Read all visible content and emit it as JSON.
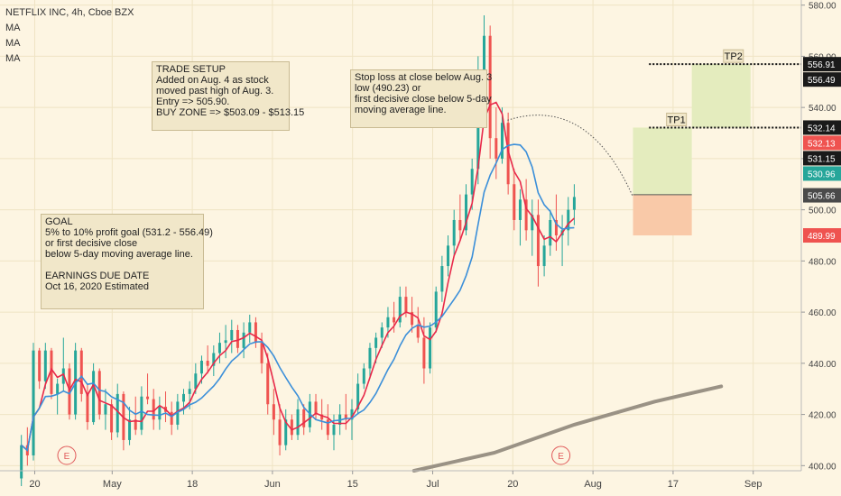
{
  "header": {
    "symbol_line": "NETFLIX INC, 4h, Cboe BZX",
    "indicators": [
      "MA",
      "MA",
      "MA"
    ]
  },
  "notes": {
    "trade_setup": "TRADE SETUP\nAdded on Aug. 4 as stock\nmoved past high of Aug. 3.\nEntry => 505.90.\nBUY ZONE => $503.09 - $513.15",
    "stop_loss": "Stop loss at close below Aug. 3\nlow (490.23) or\nfirst decisive close below 5-day\nmoving average line.",
    "goal": "GOAL\n5% to 10% profit goal (531.2 - 556.49)\nor first decisive close\nbelow 5-day moving average line.\n\nEARNINGS DUE DATE\nOct 16, 2020 Estimated"
  },
  "targets": {
    "tp1": "TP1",
    "tp2": "TP2"
  },
  "earnings_marker": "E",
  "price_labels": [
    "556.91",
    "556.49",
    "532.14",
    "532.13",
    "531.15",
    "530.96",
    "505.66",
    "489.99"
  ],
  "colors": {
    "background": "#fdf5e2",
    "up": "#26a69a",
    "down": "#ef5350",
    "ma_fast": "#e8294a",
    "ma_mid": "#3b8fd9",
    "ma_slow": "#9a9285",
    "profit_zone": "#e4ecbe",
    "loss_zone": "#f9c9a8"
  },
  "chart_data": {
    "type": "candlestick",
    "title": "NETFLIX INC, 4h, Cboe BZX",
    "ylim": [
      398,
      582
    ],
    "y_ticks": [
      400,
      420,
      440,
      460,
      480,
      500,
      520,
      540,
      560,
      580
    ],
    "x_ticks": [
      "20",
      "May",
      "18",
      "Jun",
      "15",
      "Jul",
      "20",
      "Aug",
      "17",
      "Sep"
    ],
    "x_tick_index": [
      8,
      37,
      67,
      97,
      127,
      157,
      187,
      217,
      247,
      277
    ],
    "x_range": [
      -5,
      295
    ],
    "candles_approx": [
      [
        395,
        412,
        392,
        408
      ],
      [
        408,
        415,
        400,
        404
      ],
      [
        404,
        448,
        402,
        445
      ],
      [
        445,
        446,
        430,
        433
      ],
      [
        433,
        448,
        430,
        445
      ],
      [
        445,
        446,
        426,
        428
      ],
      [
        428,
        434,
        420,
        432
      ],
      [
        432,
        450,
        429,
        438
      ],
      [
        438,
        440,
        418,
        420
      ],
      [
        420,
        448,
        418,
        445
      ],
      [
        445,
        446,
        425,
        428
      ],
      [
        428,
        432,
        414,
        417
      ],
      [
        417,
        440,
        416,
        437
      ],
      [
        437,
        438,
        418,
        420
      ],
      [
        420,
        430,
        414,
        424
      ],
      [
        424,
        426,
        410,
        413
      ],
      [
        413,
        432,
        411,
        428
      ],
      [
        428,
        429,
        406,
        410
      ],
      [
        410,
        423,
        408,
        418
      ],
      [
        418,
        427,
        412,
        414
      ],
      [
        414,
        431,
        412,
        427
      ],
      [
        427,
        436,
        424,
        426
      ],
      [
        426,
        430,
        414,
        418
      ],
      [
        418,
        427,
        414,
        423
      ],
      [
        423,
        429,
        417,
        421
      ],
      [
        421,
        425,
        412,
        416
      ],
      [
        416,
        428,
        414,
        425
      ],
      [
        425,
        430,
        420,
        428
      ],
      [
        428,
        433,
        422,
        430
      ],
      [
        430,
        440,
        428,
        436
      ],
      [
        436,
        443,
        432,
        441
      ],
      [
        441,
        447,
        436,
        439
      ],
      [
        439,
        447,
        435,
        444
      ],
      [
        444,
        452,
        440,
        448
      ],
      [
        448,
        455,
        442,
        449
      ],
      [
        449,
        457,
        444,
        453
      ],
      [
        453,
        455,
        444,
        446
      ],
      [
        446,
        456,
        442,
        452
      ],
      [
        452,
        459,
        448,
        456
      ],
      [
        456,
        458,
        446,
        448
      ],
      [
        448,
        452,
        436,
        440
      ],
      [
        440,
        444,
        420,
        424
      ],
      [
        424,
        430,
        412,
        418
      ],
      [
        418,
        424,
        404,
        408
      ],
      [
        408,
        422,
        406,
        418
      ],
      [
        418,
        420,
        410,
        412
      ],
      [
        412,
        426,
        410,
        422
      ],
      [
        422,
        424,
        412,
        415
      ],
      [
        415,
        428,
        413,
        425
      ],
      [
        425,
        428,
        418,
        420
      ],
      [
        420,
        426,
        414,
        418
      ],
      [
        418,
        424,
        410,
        412
      ],
      [
        412,
        420,
        406,
        416
      ],
      [
        416,
        424,
        412,
        420
      ],
      [
        420,
        428,
        414,
        418
      ],
      [
        418,
        426,
        410,
        422
      ],
      [
        422,
        436,
        420,
        432
      ],
      [
        432,
        440,
        430,
        438
      ],
      [
        438,
        448,
        434,
        446
      ],
      [
        446,
        452,
        440,
        450
      ],
      [
        450,
        456,
        446,
        454
      ],
      [
        454,
        462,
        450,
        458
      ],
      [
        458,
        464,
        452,
        456
      ],
      [
        456,
        470,
        454,
        466
      ],
      [
        466,
        470,
        458,
        460
      ],
      [
        460,
        466,
        452,
        455
      ],
      [
        455,
        462,
        448,
        450
      ],
      [
        450,
        458,
        432,
        438
      ],
      [
        438,
        456,
        436,
        454
      ],
      [
        454,
        470,
        452,
        468
      ],
      [
        468,
        482,
        464,
        478
      ],
      [
        478,
        490,
        474,
        486
      ],
      [
        486,
        500,
        482,
        496
      ],
      [
        496,
        506,
        488,
        492
      ],
      [
        492,
        510,
        490,
        506
      ],
      [
        506,
        520,
        500,
        516
      ],
      [
        516,
        560,
        510,
        552
      ],
      [
        552,
        576,
        540,
        568
      ],
      [
        568,
        572,
        520,
        528
      ],
      [
        528,
        540,
        512,
        520
      ],
      [
        520,
        540,
        518,
        534
      ],
      [
        534,
        538,
        506,
        510
      ],
      [
        510,
        516,
        492,
        496
      ],
      [
        496,
        508,
        486,
        504
      ],
      [
        504,
        512,
        488,
        492
      ],
      [
        492,
        504,
        482,
        498
      ],
      [
        498,
        504,
        470,
        478
      ],
      [
        478,
        490,
        474,
        486
      ],
      [
        486,
        500,
        482,
        496
      ],
      [
        496,
        506,
        484,
        490
      ],
      [
        490,
        498,
        478,
        492
      ],
      [
        492,
        505,
        486,
        500
      ],
      [
        500,
        510,
        494,
        505
      ]
    ],
    "ma_fast_description": "short moving average",
    "trade_levels": {
      "entry": 505.9,
      "stop": 489.99,
      "tp1": 532.14,
      "tp2": 556.91
    }
  }
}
